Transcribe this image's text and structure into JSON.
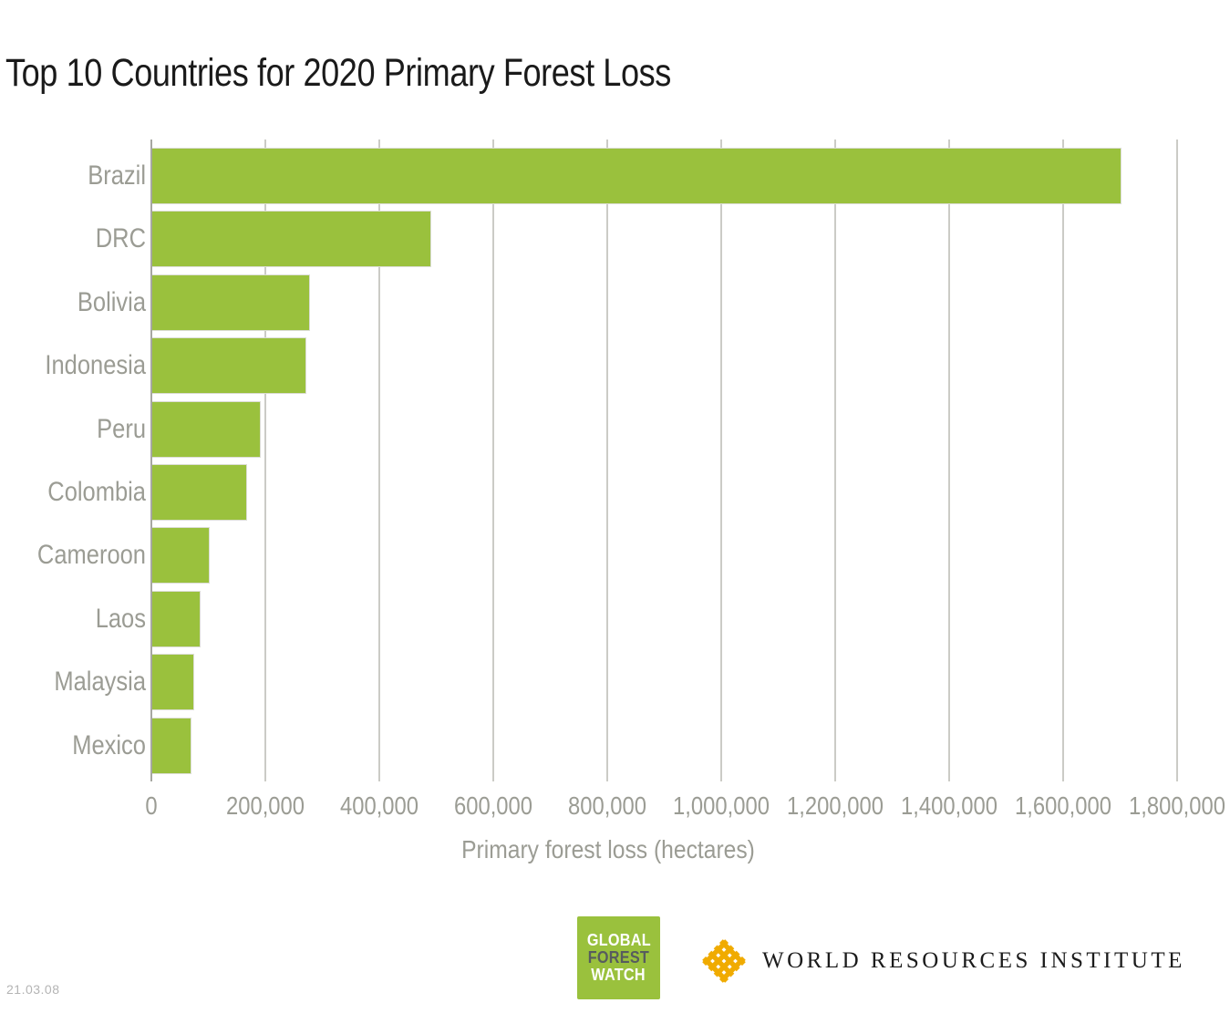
{
  "title": "Top 10 Countries for 2020 Primary Forest Loss",
  "date_stamp": "21.03.08",
  "chart_data": {
    "type": "bar",
    "orientation": "horizontal",
    "title": "Top 10 Countries for 2020 Primary Forest Loss",
    "xlabel": "Primary forest loss (hectares)",
    "ylabel": "",
    "categories": [
      "Brazil",
      "DRC",
      "Bolivia",
      "Indonesia",
      "Peru",
      "Colombia",
      "Cameroon",
      "Laos",
      "Malaysia",
      "Mexico"
    ],
    "values": [
      1700000,
      490000,
      277000,
      270000,
      190000,
      166000,
      101000,
      85000,
      73000,
      69000
    ],
    "xlim": [
      0,
      1800000
    ],
    "xticks": [
      0,
      200000,
      400000,
      600000,
      800000,
      1000000,
      1200000,
      1400000,
      1600000,
      1800000
    ],
    "xtick_labels": [
      "0",
      "200,000",
      "400,000",
      "600,000",
      "800,000",
      "1,000,000",
      "1,200,000",
      "1,400,000",
      "1,600,000",
      "1,800,000"
    ],
    "grid": true,
    "legend": false,
    "bar_color": "#9ac13d"
  },
  "colors": {
    "bar_green": "#9ac13d",
    "gridline": "#cbcbc6",
    "axis_line": "#a6a7a1",
    "axis_text": "#9b9c94",
    "title_text": "#1a1a1a",
    "date_text": "#b4b4b4",
    "wri_gold": "#f0ab00",
    "gfw_green": "#9ac13d",
    "gfw_dark_text": "#575c5e"
  },
  "footer": {
    "gfw_logo": {
      "lines": [
        "GLOBAL",
        "FOREST",
        "WATCH"
      ],
      "line_colors": [
        "#ffffff",
        "#575c5e",
        "#ffffff"
      ],
      "bg_color": "#9ac13d"
    },
    "wri_logo": {
      "text": "WORLD RESOURCES INSTITUTE",
      "icon": "wri-weave-icon",
      "icon_color": "#f0ab00"
    }
  }
}
